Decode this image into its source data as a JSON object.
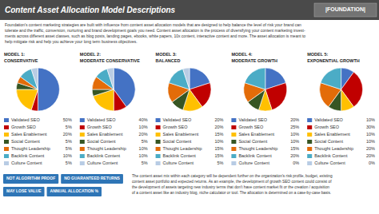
{
  "title": "Content Asset Allocation Model Descriptions",
  "annotations": [
    "|FOUNDATION|",
    "Foundation's content marketing strategies are built with influence from content asset allocation models that are designed to help balance the level of risk your brand can\ntolerate and the traffic, conversion, nurturing and brand development goals you need. Content asset allocation is the process of diversifying your content marketing invest-\nments across different asset classes, such as blog posts, landing pages, ebooks, white papers, 10x content, interactive content and more. The asset allocation is meant to\nhelp mitigate risk and help you achieve your long term business objectives.",
    "NOT ALGORITHM PROOF",
    "NO GUARANTEED RETURNS",
    "MAY LOSE VALUE",
    "ANNUAL ALLOCATION %",
    "The content asset mix within each category will be dependent further on the organization's risk profile, budget, existing\ncontent asset portfolio and expected returns. As an example, the development of growth SEO content could consist of\nthe development of assets targeting new industry terms that don't have content market fit or the creation / acquisition\nof a content asset like an industry blog, niche calculator or tool. The allocation is determined on a case-by-case basis."
  ],
  "chart_data": [
    {
      "type": "pie",
      "title": "MODEL 1:",
      "subtitle": "CONSERVATIVE",
      "categories": [
        "Validated SEO",
        "Growth SEO",
        "Sales Enablement",
        "Social Content",
        "Thought Leadership",
        "Backlink Content",
        "Culture Content"
      ],
      "values": [
        50,
        5,
        20,
        5,
        5,
        10,
        5
      ],
      "value_labels": [
        "50%",
        "5%",
        "20%",
        "5%",
        "5%",
        "10%",
        "5%"
      ],
      "colors": [
        "#4472c4",
        "#c00000",
        "#ffc000",
        "#375623",
        "#e36c09",
        "#4bacc6",
        "#b8cce4"
      ]
    },
    {
      "type": "pie",
      "title": "MODEL 2:",
      "subtitle": "MODERATE CONSERVATIVE",
      "categories": [
        "Validated SEO",
        "Growth SEO",
        "Sales Enablement",
        "Social Content",
        "Thought Leadership",
        "Backlink Content",
        "Culture Content"
      ],
      "values": [
        40,
        10,
        20,
        5,
        10,
        10,
        5
      ],
      "value_labels": [
        "40%",
        "10%",
        "20%",
        "5%",
        "10%",
        "10%",
        "5%"
      ],
      "colors": [
        "#4472c4",
        "#c00000",
        "#ffc000",
        "#375623",
        "#e36c09",
        "#4bacc6",
        "#b8cce4"
      ]
    },
    {
      "type": "pie",
      "title": "MODEL 3:",
      "subtitle": "BALANCED",
      "categories": [
        "Validated SEO",
        "Growth SEO",
        "Sales Enablement",
        "Social Content",
        "Thought Leadership",
        "Backlink Content",
        "Culture Content"
      ],
      "values": [
        20,
        20,
        15,
        10,
        15,
        15,
        5
      ],
      "value_labels": [
        "20%",
        "20%",
        "15%",
        "10%",
        "15%",
        "15%",
        "5%"
      ],
      "colors": [
        "#4472c4",
        "#c00000",
        "#ffc000",
        "#375623",
        "#e36c09",
        "#4bacc6",
        "#b8cce4"
      ]
    },
    {
      "type": "pie",
      "title": "MODEL 4:",
      "subtitle": "MODERATE GROWTH",
      "categories": [
        "Validated SEO",
        "Growth SEO",
        "Sales Enablement",
        "Social Content",
        "Thought Leadership",
        "Backlink Content",
        "Culture Content"
      ],
      "values": [
        20,
        25,
        10,
        10,
        15,
        20,
        0
      ],
      "value_labels": [
        "20%",
        "25%",
        "10%",
        "10%",
        "15%",
        "20%",
        "0%"
      ],
      "colors": [
        "#4472c4",
        "#c00000",
        "#ffc000",
        "#375623",
        "#e36c09",
        "#4bacc6",
        "#b8cce4"
      ]
    },
    {
      "type": "pie",
      "title": "MODEL 5:",
      "subtitle": "EXPONENTIAL GROWTH",
      "categories": [
        "Validated SEO",
        "Growth SEO",
        "Sales Enablement",
        "Social Content",
        "Thought Leadership",
        "Backlink Content",
        "Culture Content"
      ],
      "values": [
        10,
        30,
        10,
        10,
        20,
        20,
        0
      ],
      "value_labels": [
        "10%",
        "30%",
        "10%",
        "10%",
        "20%",
        "20%",
        "0%"
      ],
      "colors": [
        "#4472c4",
        "#c00000",
        "#ffc000",
        "#375623",
        "#e36c09",
        "#4bacc6",
        "#b8cce4"
      ]
    }
  ]
}
